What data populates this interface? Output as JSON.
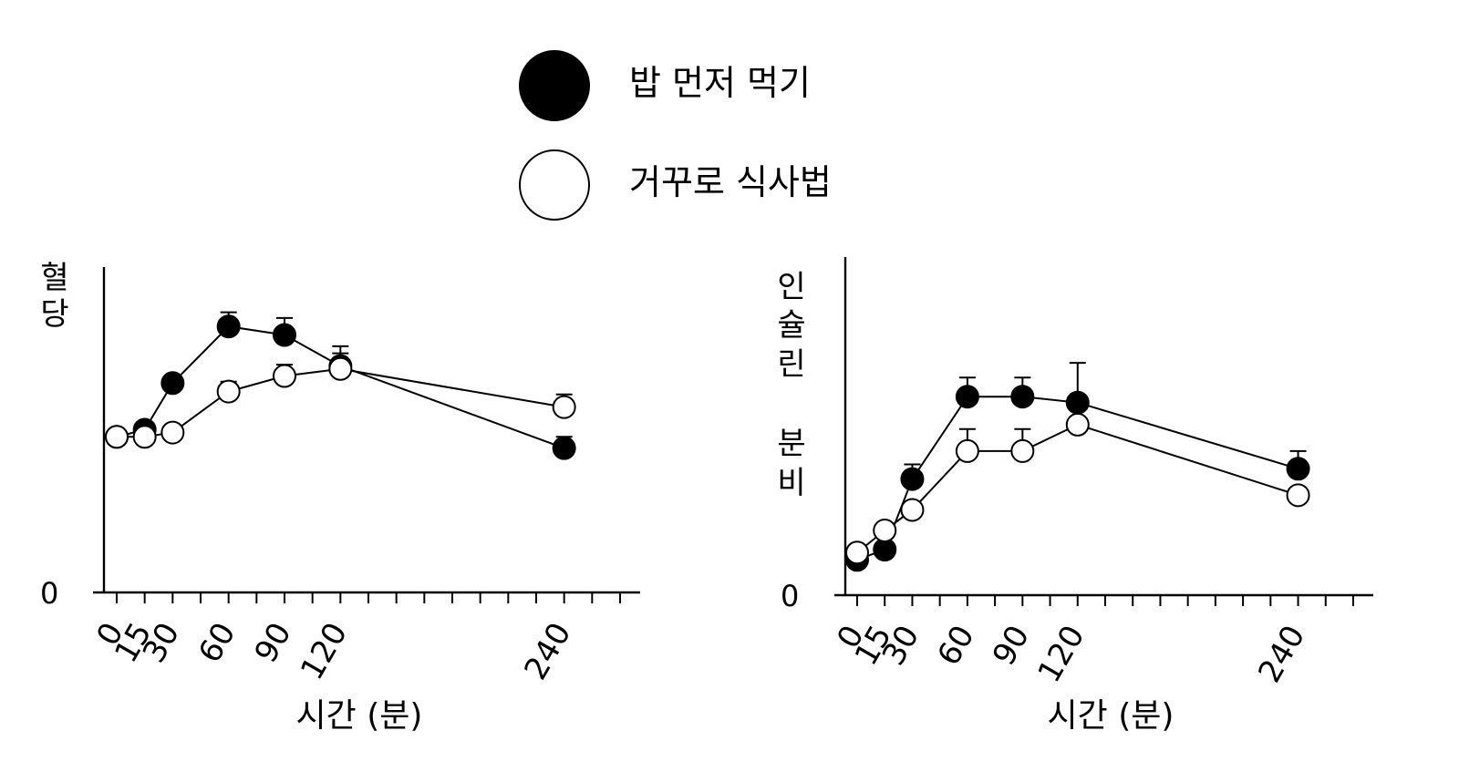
{
  "legend": {
    "items": [
      {
        "label": "밥 먼저 먹기",
        "marker": "filled",
        "color": "#000000"
      },
      {
        "label": "거꾸로 식사법",
        "marker": "open",
        "color": "#ffffff"
      }
    ]
  },
  "chart_data": [
    {
      "type": "line",
      "title": "",
      "ylabel": "혈당",
      "xlabel": "시간 (분)",
      "xlim": [
        0,
        270
      ],
      "ylim": [
        0,
        230
      ],
      "x_ticks": [
        0,
        15,
        30,
        60,
        90,
        120,
        240
      ],
      "x_tick_labels": [
        "0",
        "15",
        "30",
        "60",
        "90",
        "120",
        "240"
      ],
      "y_ticks": [
        0
      ],
      "y_tick_labels": [
        "0"
      ],
      "grid": false,
      "error_bars": "upward only",
      "series": [
        {
          "marker": "filled",
          "x": [
            0,
            15,
            30,
            60,
            90,
            120,
            240
          ],
          "y": [
            110,
            115,
            148,
            188,
            182,
            160,
            102
          ],
          "err": [
            0,
            0,
            0,
            10,
            12,
            14,
            8
          ]
        },
        {
          "marker": "open",
          "x": [
            0,
            15,
            30,
            60,
            90,
            120,
            240
          ],
          "y": [
            110,
            110,
            113,
            142,
            153,
            158,
            131
          ],
          "err": [
            0,
            0,
            0,
            7,
            8,
            11,
            9
          ]
        }
      ]
    },
    {
      "type": "line",
      "title": "",
      "ylabel": "인슐린 분비",
      "xlabel": "시간 (분)",
      "xlim": [
        0,
        270
      ],
      "ylim": [
        0,
        230
      ],
      "x_ticks": [
        0,
        15,
        30,
        60,
        90,
        120,
        240
      ],
      "x_tick_labels": [
        "0",
        "15",
        "30",
        "60",
        "90",
        "120",
        "240"
      ],
      "y_ticks": [
        0
      ],
      "y_tick_labels": [
        "0"
      ],
      "grid": false,
      "error_bars": "upward only",
      "series": [
        {
          "marker": "filled",
          "x": [
            0,
            15,
            30,
            60,
            90,
            120,
            240
          ],
          "y": [
            24,
            31,
            79,
            135,
            135,
            131,
            86
          ],
          "err": [
            0,
            0,
            10,
            13,
            13,
            27,
            12
          ]
        },
        {
          "marker": "open",
          "x": [
            0,
            15,
            30,
            60,
            90,
            120,
            240
          ],
          "y": [
            29,
            44,
            58,
            98,
            98,
            116,
            68
          ],
          "err": [
            0,
            0,
            0,
            15,
            15,
            0,
            0
          ]
        }
      ]
    }
  ]
}
